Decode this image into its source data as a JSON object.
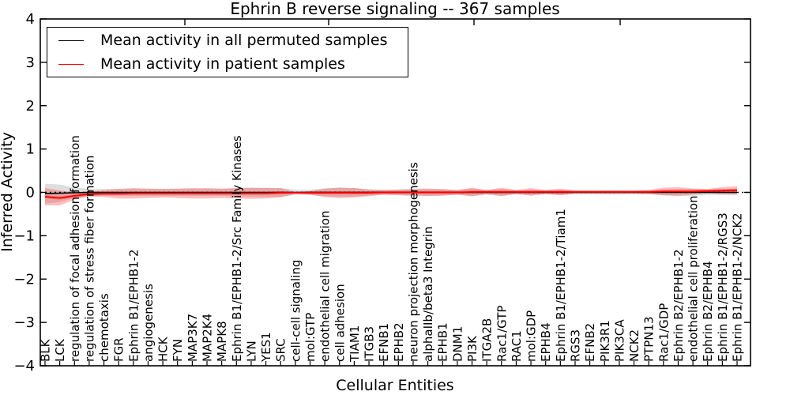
{
  "chart_data": {
    "type": "line",
    "title": "Ephrin B reverse signaling -- 367 samples",
    "xlabel": "Cellular Entities",
    "ylabel": "Inferred Activity",
    "ylim": [
      -4,
      4
    ],
    "yticks": [
      4,
      3,
      2,
      1,
      0,
      -1,
      -2,
      -3,
      -4
    ],
    "grid": false,
    "legend_position": "upper left",
    "zero_line": {
      "y": 0,
      "style": "dotted",
      "color": "#000000"
    },
    "categories": [
      "BLK",
      "LCK",
      "regulation of focal adhesion formation",
      "regulation of stress fiber formation",
      "chemotaxis",
      "FGR",
      "Ephrin B1/EPHB1-2",
      "angiogenesis",
      "HCK",
      "FYN",
      "MAP3K7",
      "MAP2K4",
      "MAPK8",
      "Ephrin B1/EPHB1-2/Src Family Kinases",
      "LYN",
      "YES1",
      "SRC",
      "cell-cell signaling",
      "mol:GTP",
      "endothelial cell migration",
      "cell adhesion",
      "TIAM1",
      "ITGB3",
      "EFNB1",
      "EPHB2",
      "neuron projection morphogenesis",
      "alphaIIb/beta3 Integrin",
      "EPHB1",
      "DNM1",
      "PI3K",
      "ITGA2B",
      "Rac1/GTP",
      "RAC1",
      "mol:GDP",
      "EPHB4",
      "Ephrin B1/EPHB1-2/Tiam1",
      "RGS3",
      "EFNB2",
      "PIK3R1",
      "PIK3CA",
      "NCK2",
      "PTPN13",
      "Rac1/GDP",
      "Ephrin B2/EPHB1-2",
      "endothelial cell proliferation",
      "Ephrin B2/EPHB4",
      "Ephrin B1/EPHB1-2/RGS3",
      "Ephrin B1/EPHB1-2/NCK2"
    ],
    "series": [
      {
        "name": "Mean activity in all permuted samples",
        "color": "#000000",
        "band_color": "#999999",
        "band_opacity": 0.32,
        "values": [
          -0.03,
          -0.02,
          -0.01,
          0,
          0,
          0,
          0,
          0,
          0,
          0,
          0,
          0,
          0,
          0,
          0,
          0,
          0,
          0,
          0,
          0,
          0,
          0,
          0,
          0,
          0,
          0,
          0,
          0,
          0,
          0,
          0,
          0,
          0,
          0,
          0,
          0,
          0,
          0,
          0,
          0,
          0,
          0,
          0,
          0,
          0,
          0,
          0,
          0
        ],
        "band": [
          0.23,
          0.2,
          0.12,
          0.08,
          0.08,
          0.08,
          0.08,
          0.08,
          0.08,
          0.08,
          0.08,
          0.08,
          0.08,
          0.09,
          0.1,
          0.11,
          0.1,
          0.06,
          0.06,
          0.09,
          0.11,
          0.1,
          0.07,
          0.06,
          0.07,
          0.09,
          0.09,
          0.07,
          0.06,
          0.09,
          0.06,
          0.08,
          0.05,
          0.06,
          0.05,
          0.06,
          0.04,
          0.04,
          0.05,
          0.05,
          0.04,
          0.05,
          0.07,
          0.08,
          0.08,
          0.06,
          0.06,
          0.07
        ]
      },
      {
        "name": "Mean activity in patient samples",
        "color": "#ff0000",
        "band_color": "#ff0000",
        "band_opacity": 0.25,
        "inner_band_halfwidth": 0.035,
        "values": [
          -0.1,
          -0.13,
          -0.08,
          -0.04,
          -0.03,
          -0.03,
          -0.02,
          -0.02,
          -0.02,
          -0.02,
          -0.02,
          -0.02,
          -0.02,
          -0.02,
          -0.02,
          -0.02,
          -0.01,
          -0.01,
          -0.01,
          -0.01,
          -0.01,
          -0.01,
          -0.01,
          0,
          0,
          0,
          0,
          0,
          0,
          0.01,
          0.01,
          0.01,
          0.01,
          0.01,
          0.01,
          0.01,
          0.01,
          0.01,
          0.01,
          0.01,
          0.01,
          0.01,
          0.02,
          0.02,
          0.02,
          0.03,
          0.04,
          0.05
        ],
        "band": [
          0.2,
          0.17,
          0.09,
          0.06,
          0.08,
          0.11,
          0.12,
          0.11,
          0.1,
          0.11,
          0.12,
          0.12,
          0.11,
          0.12,
          0.13,
          0.12,
          0.11,
          0.02,
          0.04,
          0.1,
          0.12,
          0.11,
          0.08,
          0.05,
          0.06,
          0.07,
          0.08,
          0.08,
          0.05,
          0.1,
          0.04,
          0.1,
          0.04,
          0.09,
          0.04,
          0.08,
          0.03,
          0.03,
          0.03,
          0.03,
          0.03,
          0.04,
          0.09,
          0.1,
          0.07,
          0.05,
          0.08,
          0.09
        ]
      }
    ]
  }
}
